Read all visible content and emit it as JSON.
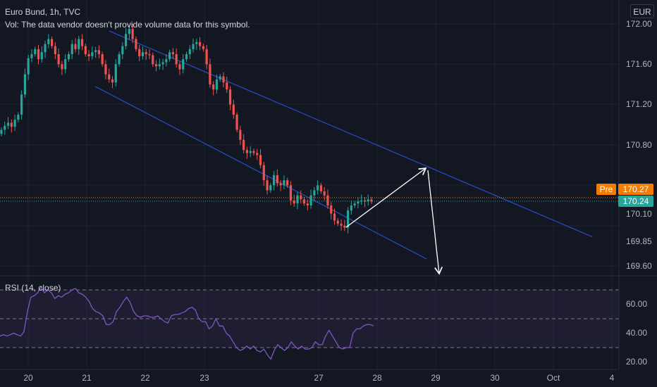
{
  "header": {
    "title": "Euro Bund, 1h, TVC",
    "vol_note": "Vol: The data vendor doesn't provide volume data for this symbol.",
    "currency": "EUR"
  },
  "rsi": {
    "title": "RSI (14, close)",
    "levels": [
      70,
      50,
      30
    ]
  },
  "tags": {
    "pre_label": "Pre",
    "pre_value": "170.27",
    "last_value": "170.24"
  },
  "colors": {
    "up": "#26a69a",
    "down": "#ef5350",
    "channel": "#2962ff",
    "rsi_line": "#7e57c2",
    "arrow": "#ffffff",
    "pre_tag": "#f57c00",
    "last_tag": "#26a69a"
  },
  "chart_data": [
    {
      "type": "candlestick",
      "title": "Euro Bund, 1h, TVC",
      "price_axis": {
        "tick_labels": [
          "172.00",
          "171.60",
          "171.20",
          "170.80",
          "170.10",
          "169.85",
          "169.60"
        ],
        "tick_values": [
          172.0,
          171.6,
          171.2,
          170.8,
          170.1,
          169.85,
          169.6
        ],
        "scale": "log"
      },
      "time_axis": {
        "tick_labels": [
          "20",
          "21",
          "22",
          "23",
          "27",
          "28",
          "29",
          "30",
          "Oct",
          "4"
        ]
      },
      "last_price": 170.24,
      "pre_price": 170.27,
      "closes": [
        170.95,
        170.99,
        171.02,
        170.98,
        171.05,
        171.1,
        171.3,
        171.5,
        171.66,
        171.7,
        171.75,
        171.65,
        171.72,
        171.8,
        171.85,
        171.78,
        171.7,
        171.6,
        171.55,
        171.65,
        171.7,
        171.8,
        171.75,
        171.85,
        171.78,
        171.7,
        171.68,
        171.72,
        171.74,
        171.7,
        171.6,
        171.5,
        171.45,
        171.42,
        171.6,
        171.7,
        171.78,
        171.9,
        171.95,
        171.85,
        171.75,
        171.68,
        171.72,
        171.7,
        171.69,
        171.6,
        171.58,
        171.6,
        171.62,
        171.65,
        171.72,
        171.7,
        171.6,
        171.55,
        171.65,
        171.7,
        171.75,
        171.8,
        171.82,
        171.78,
        171.75,
        171.6,
        171.4,
        171.35,
        171.45,
        171.48,
        171.42,
        171.35,
        171.2,
        171.1,
        170.95,
        170.85,
        170.75,
        170.72,
        170.74,
        170.72,
        170.7,
        170.6,
        170.45,
        170.35,
        170.4,
        170.5,
        170.42,
        170.4,
        170.45,
        170.4,
        170.25,
        170.22,
        170.3,
        170.26,
        170.22,
        170.2,
        170.3,
        170.35,
        170.4,
        170.34,
        170.3,
        170.2,
        170.12,
        170.05,
        170.02,
        170.0,
        169.98,
        170.15,
        170.2,
        170.22,
        170.24,
        170.25,
        170.24,
        170.26,
        170.24
      ],
      "channel": {
        "upper_start": [
          171.93,
          "21"
        ],
        "lower_start": [
          171.38,
          "21"
        ],
        "end": "Oct+"
      },
      "projection_arrows": [
        [
          170.0,
          170.72
        ],
        [
          170.72,
          169.65
        ]
      ]
    },
    {
      "type": "line",
      "title": "RSI (14, close)",
      "y_tick_labels": [
        "60.00",
        "40.00",
        "20.00"
      ],
      "ylim": [
        15,
        80
      ],
      "levels": [
        70,
        50,
        30
      ],
      "series": [
        {
          "values": [
            38,
            39,
            38,
            39,
            40,
            39,
            38,
            41,
            55,
            65,
            66,
            68,
            72,
            68,
            70,
            68,
            64,
            66,
            65,
            67,
            68,
            70,
            71,
            68,
            67,
            65,
            62,
            57,
            55,
            54,
            52,
            46,
            46,
            48,
            55,
            58,
            62,
            65,
            61,
            55,
            52,
            51,
            52,
            52,
            51,
            51,
            52,
            50,
            48,
            47,
            52,
            53,
            53,
            54,
            55,
            57,
            58,
            56,
            50,
            48,
            48,
            43,
            45,
            50,
            45,
            45,
            40,
            38,
            34,
            30,
            28,
            29,
            31,
            29,
            31,
            28,
            27,
            29,
            25,
            22,
            28,
            32,
            30,
            28,
            30,
            34,
            31,
            29,
            31,
            29,
            29,
            30,
            34,
            32,
            32,
            38,
            42,
            38,
            34,
            30,
            29,
            30,
            30,
            40,
            43,
            43,
            45,
            46,
            46,
            45
          ]
        }
      ]
    }
  ]
}
